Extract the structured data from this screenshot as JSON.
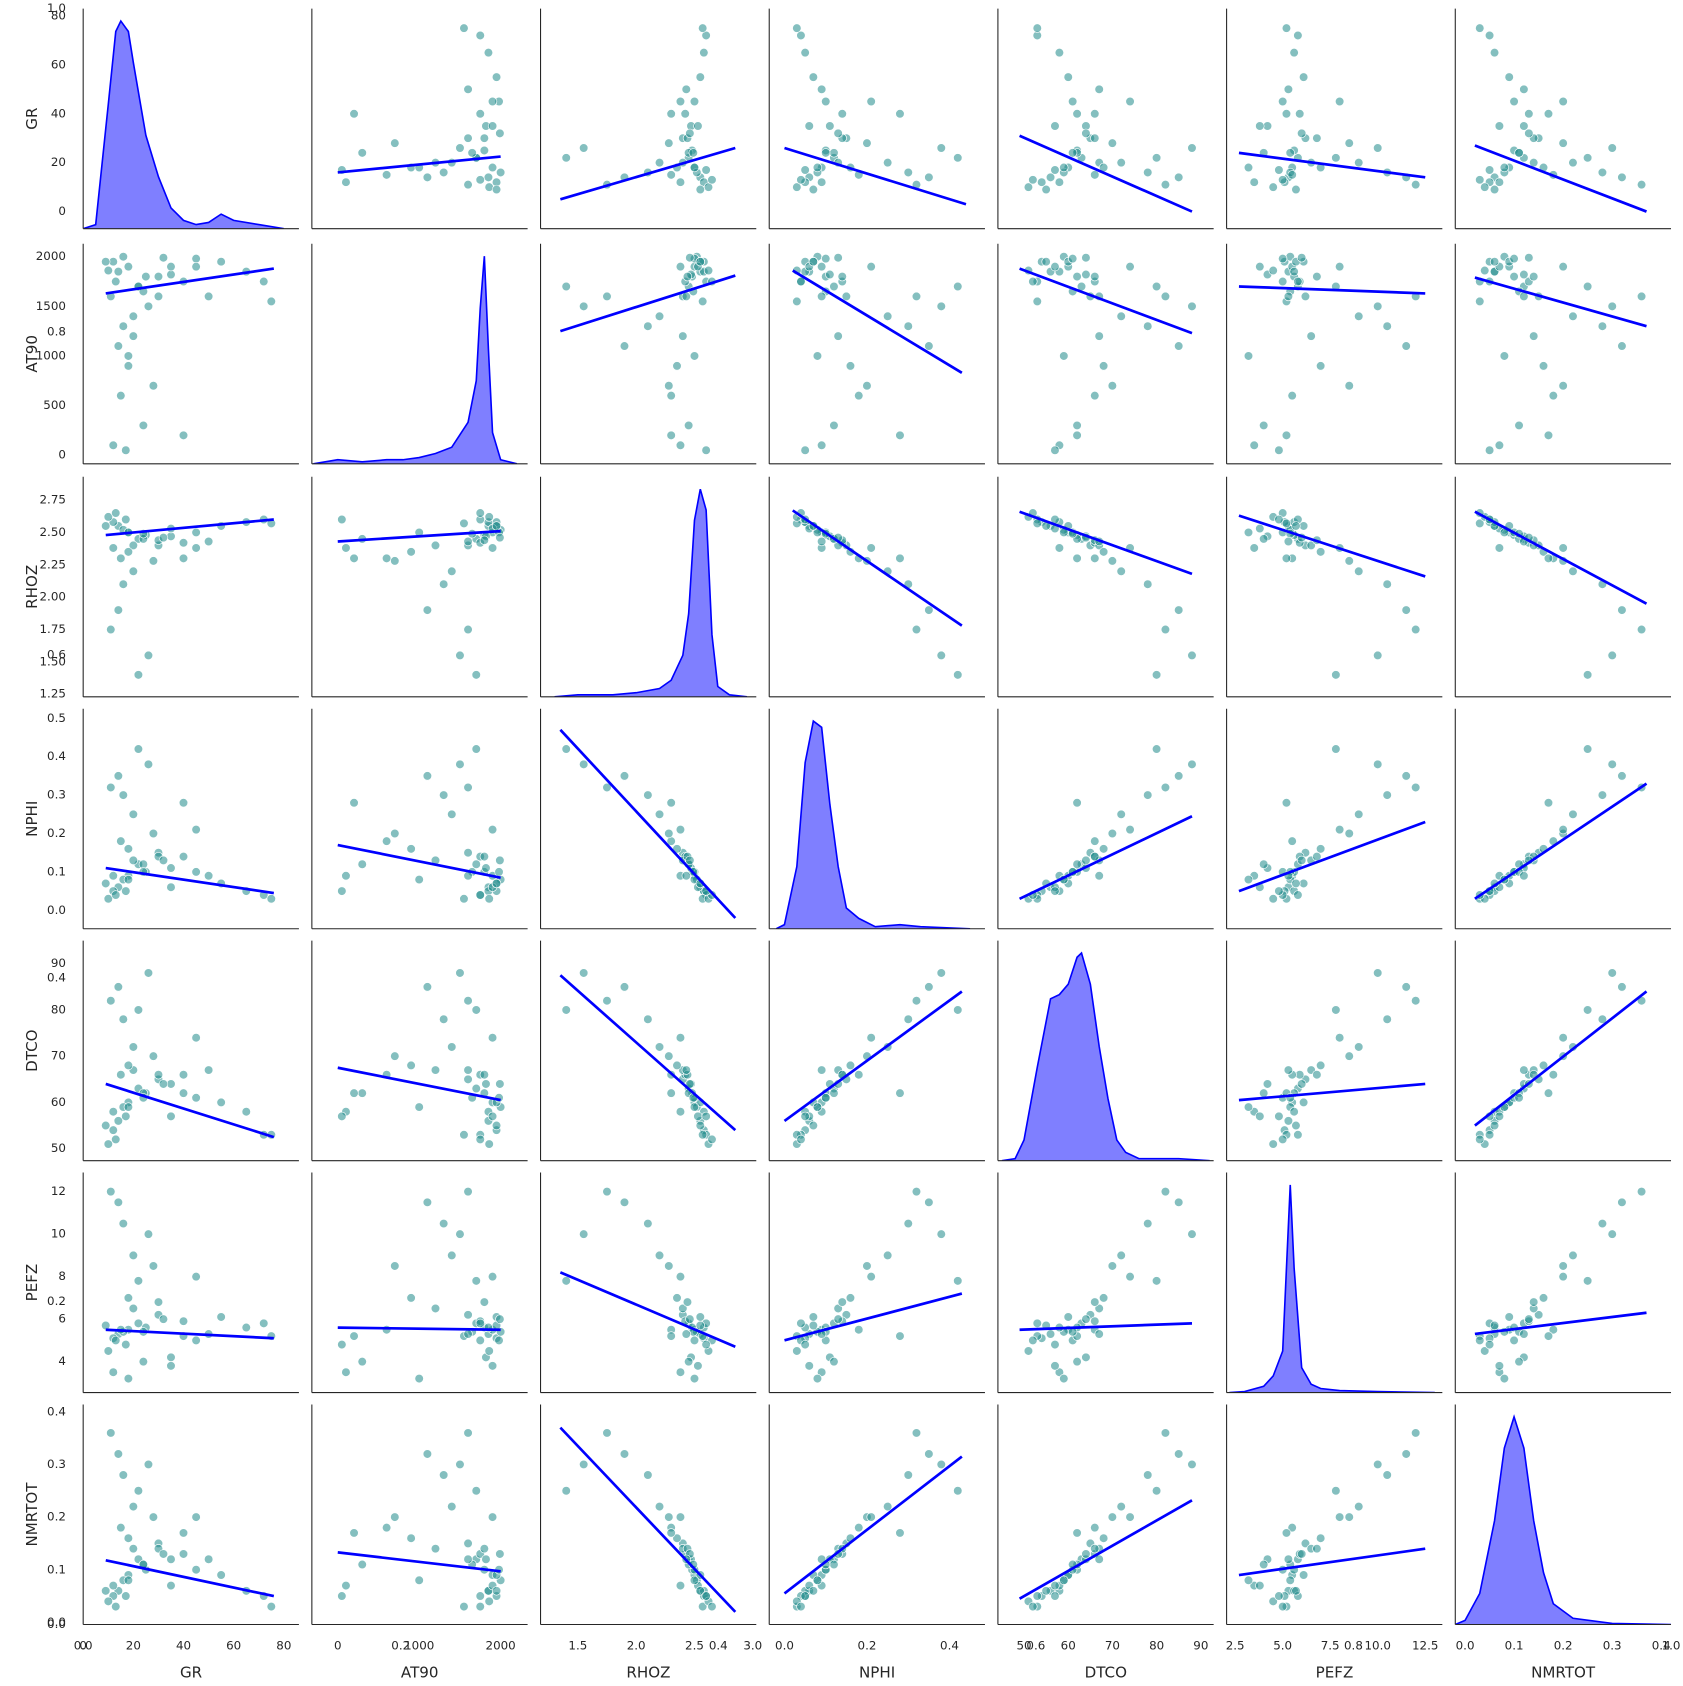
{
  "chart_data": {
    "type": "pairplot",
    "point_color": "#1f8a8a",
    "line_color": "#0000ff",
    "kde_color": "#0000ff",
    "kde_ylim": [
      0,
      1.06
    ],
    "density_axis": {
      "lim": [
        0,
        1
      ],
      "ticks": [
        {
          "value": 0,
          "label": "0.0"
        },
        0.2,
        0.4,
        0.6,
        0.8,
        {
          "value": 1,
          "label": "1.0"
        }
      ]
    },
    "variables": [
      {
        "name": "GR",
        "xlim": [
          0,
          86
        ],
        "xticks": [
          0,
          20,
          40,
          60,
          80
        ],
        "ylim": [
          -7,
          83
        ],
        "yticks": [
          0,
          20,
          40,
          60,
          80
        ],
        "kde": {
          "x": [
            0,
            5,
            10,
            13,
            15,
            18,
            20,
            25,
            30,
            35,
            40,
            45,
            50,
            55,
            60,
            70,
            80
          ],
          "density": [
            0,
            0.02,
            0.6,
            0.95,
            1.0,
            0.95,
            0.8,
            0.45,
            0.25,
            0.1,
            0.04,
            0.02,
            0.03,
            0.07,
            0.04,
            0.02,
            0
          ]
        }
      },
      {
        "name": "AT90",
        "xlim": [
          -318,
          2331
        ],
        "xticks": [
          0,
          1000,
          2000
        ],
        "ylim": [
          -87,
          2130
        ],
        "yticks": [
          0,
          500,
          1000,
          1500,
          2000
        ],
        "kde": {
          "x": [
            -300,
            0,
            300,
            600,
            800,
            1000,
            1200,
            1400,
            1600,
            1700,
            1750,
            1800,
            1850,
            1900,
            2000,
            2200
          ],
          "density": [
            0,
            0.02,
            0.01,
            0.02,
            0.02,
            0.03,
            0.05,
            0.08,
            0.2,
            0.4,
            0.75,
            1.0,
            0.55,
            0.15,
            0.02,
            0
          ]
        }
      },
      {
        "name": "RHOZ",
        "xlim": [
          1.18,
          3.03
        ],
        "xticks": [
          1.5,
          {
            "value": 2,
            "label": "2.0"
          },
          2.5,
          {
            "value": 3,
            "label": "3.0"
          }
        ],
        "ylim": [
          1.23,
          2.93
        ],
        "yticks": [
          1.25,
          {
            "value": 1.5,
            "label": "1.50"
          },
          1.75,
          {
            "value": 2,
            "label": "2.00"
          },
          2.25,
          {
            "value": 2.5,
            "label": "2.50"
          },
          2.75
        ],
        "kde": {
          "x": [
            1.3,
            1.5,
            1.8,
            2.0,
            2.2,
            2.3,
            2.4,
            2.45,
            2.5,
            2.55,
            2.6,
            2.65,
            2.7,
            2.8,
            2.95
          ],
          "density": [
            0,
            0.01,
            0.01,
            0.02,
            0.04,
            0.08,
            0.2,
            0.4,
            0.85,
            1.0,
            0.9,
            0.3,
            0.05,
            0.01,
            0
          ]
        }
      },
      {
        "name": "NPHI",
        "xlim": [
          -0.037,
          0.486
        ],
        "xticks": [
          {
            "value": 0,
            "label": "0.0"
          },
          0.2,
          0.4
        ],
        "ylim": [
          -0.048,
          0.525
        ],
        "yticks": [
          {
            "value": 0,
            "label": "0.0"
          },
          0.1,
          0.2,
          0.3,
          0.4,
          0.5
        ],
        "kde": {
          "x": [
            -0.02,
            0.0,
            0.03,
            0.05,
            0.07,
            0.09,
            0.11,
            0.13,
            0.15,
            0.18,
            0.22,
            0.28,
            0.33,
            0.45
          ],
          "density": [
            0,
            0.02,
            0.3,
            0.8,
            1.0,
            0.97,
            0.6,
            0.3,
            0.1,
            0.05,
            0.01,
            0.02,
            0.01,
            0
          ]
        }
      },
      {
        "name": "DTCO",
        "xlim": [
          44.1,
          92.9
        ],
        "xticks": [
          50,
          60,
          70,
          80,
          90
        ],
        "ylim": [
          47.4,
          95
        ],
        "yticks": [
          50,
          60,
          70,
          80,
          90
        ],
        "kde": {
          "x": [
            45,
            48,
            50,
            53,
            56,
            58,
            60,
            62,
            63,
            65,
            67,
            69,
            71,
            73,
            76,
            85,
            92
          ],
          "density": [
            0,
            0.01,
            0.1,
            0.45,
            0.78,
            0.8,
            0.85,
            0.98,
            1.0,
            0.85,
            0.55,
            0.3,
            0.1,
            0.04,
            0.01,
            0.01,
            0
          ]
        }
      },
      {
        "name": "PEFZ",
        "xlim": [
          2.05,
          13.4
        ],
        "xticks": [
          2.5,
          {
            "value": 5,
            "label": "5.0"
          },
          7.5,
          {
            "value": 10,
            "label": "10.0"
          },
          12.5
        ],
        "ylim": [
          2.54,
          12.9
        ],
        "yticks": [
          4,
          6,
          8,
          10,
          12
        ],
        "kde": {
          "x": [
            2.2,
            3,
            4,
            4.5,
            5,
            5.2,
            5.4,
            5.6,
            6,
            6.5,
            7,
            8,
            10,
            13
          ],
          "density": [
            0,
            0.005,
            0.03,
            0.08,
            0.2,
            0.6,
            1.0,
            0.6,
            0.12,
            0.04,
            0.02,
            0.01,
            0.005,
            0
          ]
        }
      },
      {
        "name": "NMRTOT",
        "xlim": [
          -0.02,
          0.42
        ],
        "xticks": [
          {
            "value": 0,
            "label": "0.0"
          },
          0.1,
          0.2,
          0.3,
          0.4
        ],
        "ylim": [
          -0.004,
          0.414
        ],
        "yticks": [
          {
            "value": 0,
            "label": "0.0"
          },
          0.1,
          0.2,
          0.3,
          0.4
        ],
        "kde": {
          "x": [
            -0.02,
            0.0,
            0.03,
            0.06,
            0.08,
            0.1,
            0.12,
            0.14,
            0.16,
            0.18,
            0.22,
            0.3,
            0.42
          ],
          "density": [
            0,
            0.02,
            0.15,
            0.5,
            0.85,
            1.0,
            0.85,
            0.5,
            0.25,
            0.1,
            0.03,
            0.005,
            0
          ]
        }
      }
    ],
    "data": [
      [
        14,
        1850,
        2.55,
        0.06,
        56,
        5.3,
        0.06
      ],
      [
        18,
        1900,
        2.5,
        0.09,
        60,
        5.5,
        0.09
      ],
      [
        22,
        1700,
        2.45,
        0.12,
        63,
        5.8,
        0.12
      ],
      [
        12,
        1950,
        2.58,
        0.05,
        54,
        5.1,
        0.05
      ],
      [
        30,
        1600,
        2.4,
        0.15,
        65,
        6.2,
        0.15
      ],
      [
        25,
        1800,
        2.48,
        0.1,
        62,
        5.6,
        0.1
      ],
      [
        16,
        2000,
        2.52,
        0.08,
        59,
        5.4,
        0.08
      ],
      [
        40,
        1750,
        2.42,
        0.14,
        66,
        5.9,
        0.13
      ],
      [
        55,
        1950,
        2.55,
        0.07,
        60,
        6.1,
        0.09
      ],
      [
        65,
        1850,
        2.58,
        0.05,
        58,
        5.6,
        0.06
      ],
      [
        72,
        1750,
        2.6,
        0.04,
        53,
        5.8,
        0.05
      ],
      [
        75,
        1550,
        2.57,
        0.03,
        53,
        5.2,
        0.03
      ],
      [
        45,
        1980,
        2.5,
        0.1,
        61,
        5.0,
        0.1
      ],
      [
        35,
        1820,
        2.47,
        0.11,
        64,
        4.2,
        0.12
      ],
      [
        20,
        1200,
        2.4,
        0.13,
        67,
        6.5,
        0.14
      ],
      [
        18,
        900,
        2.35,
        0.16,
        68,
        7.0,
        0.16
      ],
      [
        15,
        600,
        2.3,
        0.18,
        66,
        5.5,
        0.18
      ],
      [
        24,
        300,
        2.45,
        0.12,
        62,
        4.0,
        0.11
      ],
      [
        12,
        100,
        2.38,
        0.09,
        58,
        3.5,
        0.07
      ],
      [
        28,
        700,
        2.28,
        0.2,
        70,
        8.5,
        0.2
      ],
      [
        20,
        1400,
        2.2,
        0.25,
        72,
        9.0,
        0.22
      ],
      [
        16,
        1300,
        2.1,
        0.3,
        78,
        10.5,
        0.28
      ],
      [
        14,
        1100,
        1.9,
        0.35,
        85,
        11.5,
        0.32
      ],
      [
        11,
        1600,
        1.75,
        0.32,
        82,
        12.0,
        0.36
      ],
      [
        26,
        1500,
        1.55,
        0.38,
        88,
        10.0,
        0.3
      ],
      [
        22,
        1700,
        1.4,
        0.42,
        80,
        7.8,
        0.25
      ],
      [
        10,
        1860,
        2.62,
        0.03,
        51,
        4.5,
        0.04
      ],
      [
        35,
        1900,
        2.53,
        0.06,
        57,
        3.8,
        0.07
      ],
      [
        18,
        1000,
        2.5,
        0.08,
        59,
        3.2,
        0.08
      ],
      [
        30,
        1800,
        2.44,
        0.14,
        66,
        6.8,
        0.14
      ],
      [
        13,
        1750,
        2.65,
        0.04,
        52,
        5.0,
        0.03
      ],
      [
        40,
        200,
        2.3,
        0.28,
        62,
        5.2,
        0.17
      ],
      [
        45,
        1900,
        2.38,
        0.21,
        74,
        8.0,
        0.2
      ],
      [
        9,
        1950,
        2.55,
        0.07,
        55,
        5.7,
        0.06
      ],
      [
        24,
        1650,
        2.49,
        0.1,
        61,
        5.4,
        0.11
      ],
      [
        17,
        50,
        2.6,
        0.05,
        57,
        4.8,
        0.05
      ],
      [
        32,
        1990,
        2.46,
        0.13,
        64,
        6.0,
        0.13
      ],
      [
        50,
        1600,
        2.43,
        0.09,
        67,
        5.3,
        0.12
      ]
    ],
    "regression": [
      [
        null,
        {
          "x": [
            0,
            2000
          ],
          "y": [
            16,
            22.5
          ]
        },
        {
          "x": [
            1.35,
            2.85
          ],
          "y": [
            5,
            26
          ]
        },
        {
          "x": [
            0.0,
            0.44
          ],
          "y": [
            26,
            3
          ]
        },
        {
          "x": [
            49,
            88
          ],
          "y": [
            31,
            0
          ]
        },
        {
          "x": [
            2.7,
            12.5
          ],
          "y": [
            24,
            14
          ]
        },
        {
          "x": [
            0.02,
            0.37
          ],
          "y": [
            27,
            0
          ]
        }
      ],
      [
        {
          "x": [
            9,
            76
          ],
          "y": [
            1630,
            1880
          ]
        },
        null,
        {
          "x": [
            1.35,
            2.85
          ],
          "y": [
            1250,
            1810
          ]
        },
        {
          "x": [
            0.02,
            0.43
          ],
          "y": [
            1860,
            830
          ]
        },
        {
          "x": [
            49,
            88
          ],
          "y": [
            1880,
            1230
          ]
        },
        {
          "x": [
            2.7,
            12.5
          ],
          "y": [
            1700,
            1630
          ]
        },
        {
          "x": [
            0.02,
            0.37
          ],
          "y": [
            1790,
            1300
          ]
        }
      ],
      [
        {
          "x": [
            9,
            76
          ],
          "y": [
            2.48,
            2.6
          ]
        },
        {
          "x": [
            0,
            2000
          ],
          "y": [
            2.43,
            2.51
          ]
        },
        null,
        {
          "x": [
            0.02,
            0.43
          ],
          "y": [
            2.67,
            1.78
          ]
        },
        {
          "x": [
            49,
            88
          ],
          "y": [
            2.66,
            2.18
          ]
        },
        {
          "x": [
            2.7,
            12.5
          ],
          "y": [
            2.63,
            2.16
          ]
        },
        {
          "x": [
            0.02,
            0.37
          ],
          "y": [
            2.66,
            1.95
          ]
        }
      ],
      [
        {
          "x": [
            9,
            76
          ],
          "y": [
            0.11,
            0.045
          ]
        },
        {
          "x": [
            0,
            2000
          ],
          "y": [
            0.17,
            0.085
          ]
        },
        {
          "x": [
            1.35,
            2.85
          ],
          "y": [
            0.47,
            -0.02
          ]
        },
        null,
        {
          "x": [
            49,
            88
          ],
          "y": [
            0.03,
            0.245
          ]
        },
        {
          "x": [
            2.7,
            12.5
          ],
          "y": [
            0.05,
            0.23
          ]
        },
        {
          "x": [
            0.02,
            0.37
          ],
          "y": [
            0.03,
            0.33
          ]
        }
      ],
      [
        {
          "x": [
            9,
            76
          ],
          "y": [
            64,
            52.5
          ]
        },
        {
          "x": [
            0,
            2000
          ],
          "y": [
            67.5,
            60.5
          ]
        },
        {
          "x": [
            1.35,
            2.85
          ],
          "y": [
            87.5,
            54
          ]
        },
        {
          "x": [
            0.0,
            0.43
          ],
          "y": [
            56,
            84
          ]
        },
        null,
        {
          "x": [
            2.7,
            12.5
          ],
          "y": [
            60.5,
            64
          ]
        },
        {
          "x": [
            0.02,
            0.37
          ],
          "y": [
            55,
            84
          ]
        }
      ],
      [
        {
          "x": [
            9,
            76
          ],
          "y": [
            5.5,
            5.1
          ]
        },
        {
          "x": [
            0,
            2000
          ],
          "y": [
            5.6,
            5.5
          ]
        },
        {
          "x": [
            1.35,
            2.85
          ],
          "y": [
            8.2,
            4.7
          ]
        },
        {
          "x": [
            0.0,
            0.43
          ],
          "y": [
            5.0,
            7.2
          ]
        },
        {
          "x": [
            49,
            88
          ],
          "y": [
            5.5,
            5.8
          ]
        },
        null,
        {
          "x": [
            0.02,
            0.37
          ],
          "y": [
            5.3,
            6.3
          ]
        }
      ],
      [
        {
          "x": [
            9,
            76
          ],
          "y": [
            0.118,
            0.05
          ]
        },
        {
          "x": [
            0,
            2000
          ],
          "y": [
            0.133,
            0.097
          ]
        },
        {
          "x": [
            1.35,
            2.85
          ],
          "y": [
            0.37,
            0.02
          ]
        },
        {
          "x": [
            0.0,
            0.43
          ],
          "y": [
            0.055,
            0.315
          ]
        },
        {
          "x": [
            49,
            88
          ],
          "y": [
            0.045,
            0.232
          ]
        },
        {
          "x": [
            2.7,
            12.5
          ],
          "y": [
            0.09,
            0.14
          ]
        },
        null
      ]
    ]
  }
}
